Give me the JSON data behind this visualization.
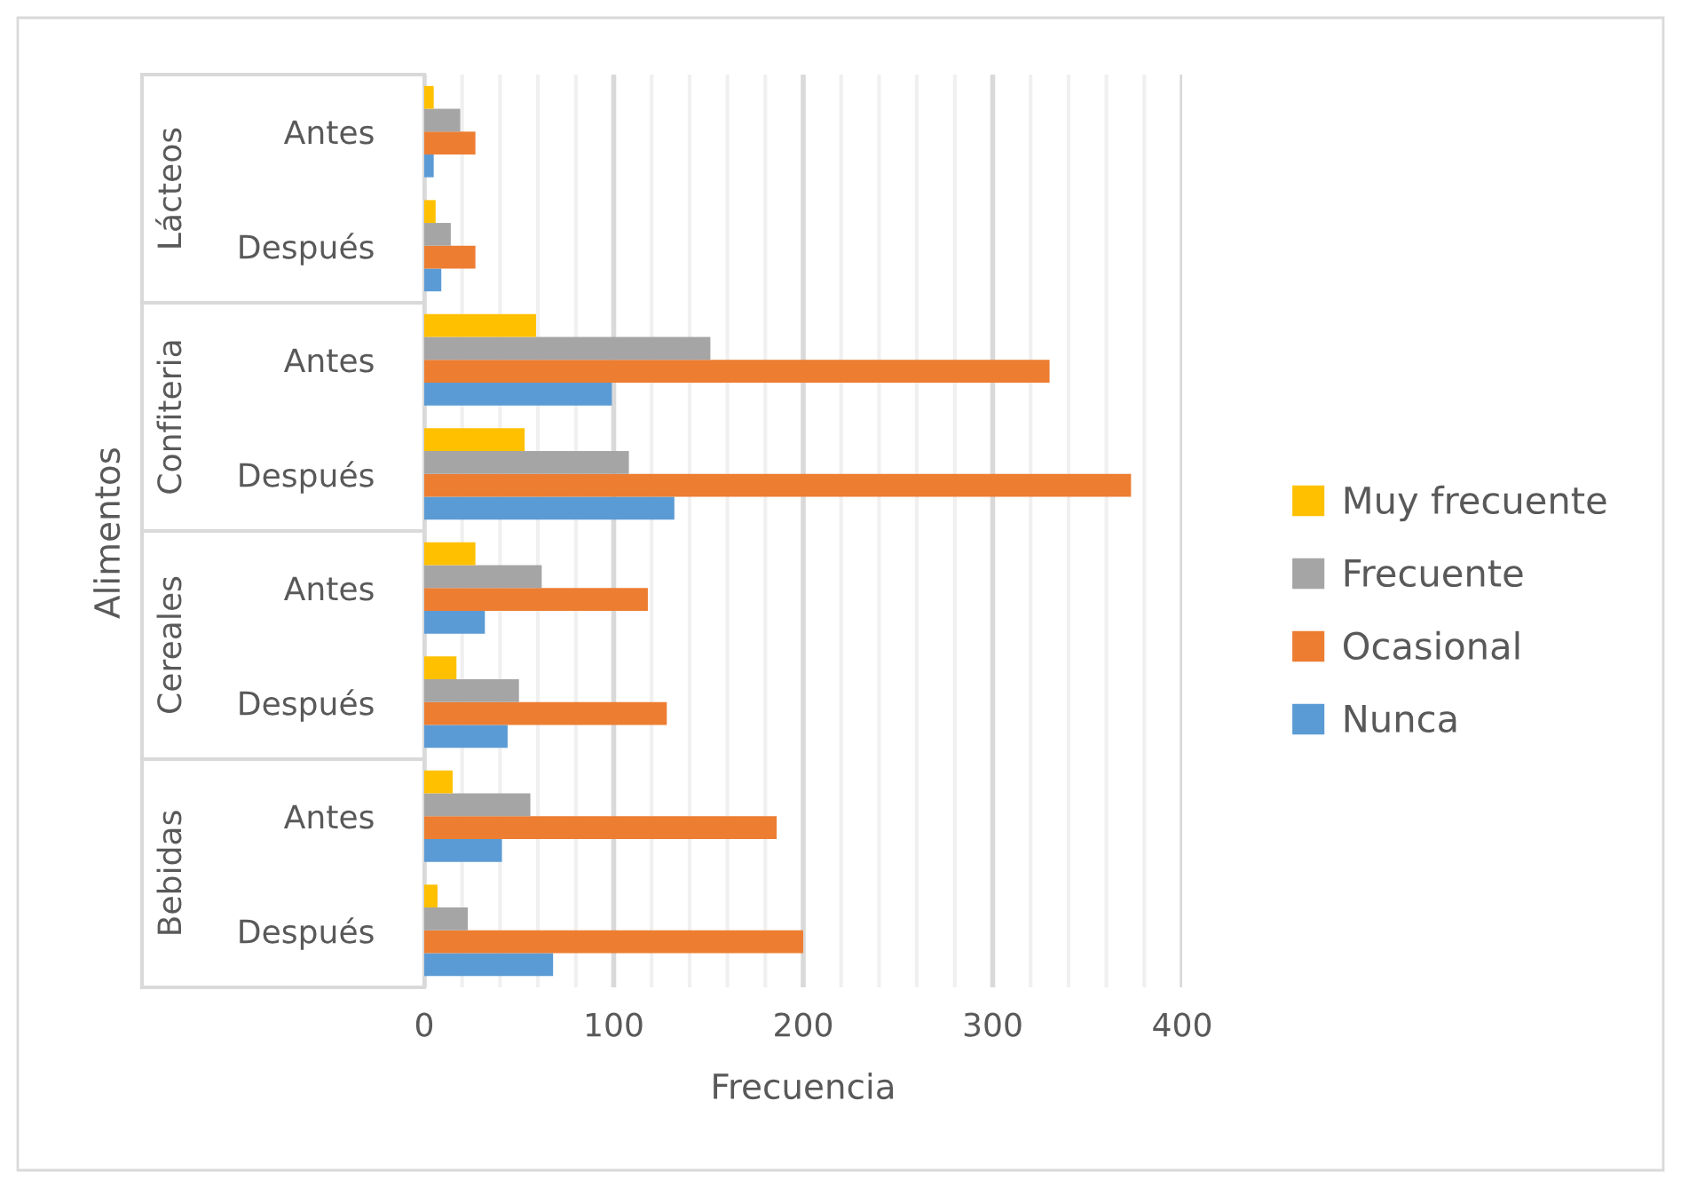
{
  "chart_data": {
    "type": "bar",
    "orientation": "horizontal",
    "xlabel": "Frecuencia",
    "ylabel": "Alimentos",
    "categories": [
      "Antes",
      "Después",
      "Antes",
      "Después",
      "Antes",
      "Después",
      "Antes",
      "Después"
    ],
    "annotations": [
      "Lácteos",
      "Confiteria",
      "Cereales",
      "Bebidas"
    ],
    "series": [
      {
        "name": "Nunca",
        "color": "#5b9bd5",
        "values": [
          5,
          9,
          99,
          132,
          32,
          44,
          41,
          68
        ]
      },
      {
        "name": "Ocasional",
        "color": "#ed7d31",
        "values": [
          27,
          27,
          330,
          373,
          118,
          128,
          186,
          200
        ]
      },
      {
        "name": "Frecuente",
        "color": "#a5a5a5",
        "values": [
          19,
          14,
          151,
          108,
          62,
          50,
          56,
          23
        ]
      },
      {
        "name": "Muy frecuente",
        "color": "#ffc000",
        "values": [
          5,
          6,
          59,
          53,
          27,
          17,
          15,
          7
        ]
      }
    ],
    "xlim": [
      0,
      400
    ],
    "xticks": [
      0,
      {
        "value": 20,
        "label": null
      },
      {
        "value": 40,
        "label": null
      },
      {
        "value": 60,
        "label": null
      },
      {
        "value": 80,
        "label": null
      },
      100,
      {
        "value": 120,
        "label": null
      },
      {
        "value": 140,
        "label": null
      },
      {
        "value": 160,
        "label": null
      },
      {
        "value": 180,
        "label": null
      },
      200,
      {
        "value": 220,
        "label": null
      },
      {
        "value": 240,
        "label": null
      },
      {
        "value": 260,
        "label": null
      },
      {
        "value": 280,
        "label": null
      },
      300,
      {
        "value": 320,
        "label": null
      },
      {
        "value": 340,
        "label": null
      },
      {
        "value": 360,
        "label": null
      },
      {
        "value": 380,
        "label": null
      },
      400
    ],
    "grid": "x",
    "legend": "right"
  }
}
